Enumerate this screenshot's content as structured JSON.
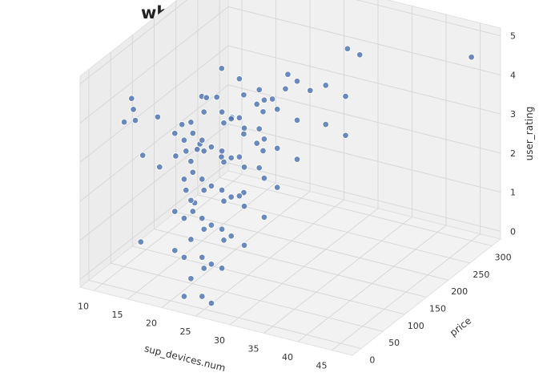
{
  "chart_data": {
    "type": "scatter",
    "projection": "3d",
    "title": "what cause the best rating?",
    "xlabel": "sup_devices.num",
    "ylabel": "price",
    "zlabel": "user_rating",
    "xlim": [
      8,
      48
    ],
    "ylim": [
      -20,
      320
    ],
    "zlim": [
      -0.2,
      5.2
    ],
    "xticks": [
      10,
      15,
      20,
      25,
      30,
      35,
      40,
      45
    ],
    "yticks": [
      0,
      50,
      100,
      150,
      200,
      250,
      300
    ],
    "zticks": [
      0,
      1,
      2,
      3,
      4,
      5
    ],
    "grid": true,
    "point_color": "#4c72b0",
    "points": [
      [
        10,
        50,
        3.5
      ],
      [
        11,
        60,
        3.5
      ],
      [
        12,
        40,
        4
      ],
      [
        13,
        80,
        3.5
      ],
      [
        14,
        30,
        3
      ],
      [
        12,
        100,
        2
      ],
      [
        14,
        120,
        3
      ],
      [
        15,
        90,
        2.5
      ],
      [
        13,
        20,
        4.5
      ],
      [
        15,
        150,
        3.5
      ],
      [
        14,
        200,
        3
      ],
      [
        16,
        180,
        4
      ],
      [
        13,
        250,
        2
      ],
      [
        15,
        10,
        1
      ],
      [
        16,
        130,
        2.5
      ],
      [
        22,
        0,
        4
      ],
      [
        22,
        0,
        3
      ],
      [
        22,
        0,
        2
      ],
      [
        22,
        0,
        1
      ],
      [
        22,
        0,
        0
      ],
      [
        23,
        30,
        4.5
      ],
      [
        23,
        30,
        3.5
      ],
      [
        23,
        30,
        2.5
      ],
      [
        23,
        30,
        1.5
      ],
      [
        23,
        30,
        0.5
      ],
      [
        24,
        60,
        4
      ],
      [
        24,
        60,
        3
      ],
      [
        24,
        60,
        2
      ],
      [
        24,
        60,
        1
      ],
      [
        21,
        20,
        3.5
      ],
      [
        21,
        20,
        2.5
      ],
      [
        20,
        10,
        4
      ],
      [
        20,
        10,
        2
      ],
      [
        20,
        10,
        1
      ],
      [
        25,
        90,
        4.5
      ],
      [
        25,
        90,
        3.5
      ],
      [
        25,
        90,
        2
      ],
      [
        25,
        120,
        3
      ],
      [
        25,
        120,
        4
      ],
      [
        24,
        150,
        3.5
      ],
      [
        24,
        150,
        2.5
      ],
      [
        26,
        170,
        4
      ],
      [
        23,
        0,
        4.5
      ],
      [
        23,
        0,
        3.5
      ],
      [
        23,
        0,
        2.5
      ],
      [
        23,
        0,
        1.5
      ],
      [
        23,
        0,
        0.5
      ],
      [
        22,
        20,
        4
      ],
      [
        22,
        20,
        3
      ],
      [
        22,
        20,
        2
      ],
      [
        24,
        10,
        4
      ],
      [
        24,
        10,
        3
      ],
      [
        24,
        10,
        2
      ],
      [
        24,
        10,
        1
      ],
      [
        24,
        10,
        0
      ],
      [
        25,
        40,
        4.5
      ],
      [
        25,
        40,
        3.5
      ],
      [
        25,
        40,
        2.5
      ],
      [
        25,
        40,
        1.5
      ],
      [
        25,
        40,
        0.5
      ],
      [
        25,
        80,
        5
      ],
      [
        25,
        80,
        4
      ],
      [
        25,
        80,
        3
      ],
      [
        25,
        80,
        2
      ],
      [
        26,
        110,
        4.5
      ],
      [
        26,
        110,
        3.5
      ],
      [
        26,
        110,
        2.5
      ],
      [
        26,
        140,
        4
      ],
      [
        27,
        160,
        4.5
      ],
      [
        23,
        70,
        3
      ],
      [
        24,
        20,
        5
      ],
      [
        22,
        30,
        3.5
      ],
      [
        21,
        40,
        2
      ],
      [
        26,
        0,
        4
      ],
      [
        26,
        0,
        3
      ],
      [
        26,
        0,
        2
      ],
      [
        26,
        0,
        1
      ],
      [
        26,
        0,
        0
      ],
      [
        27,
        30,
        4.5
      ],
      [
        27,
        30,
        3.5
      ],
      [
        27,
        30,
        2.5
      ],
      [
        27,
        30,
        1.5
      ],
      [
        27,
        60,
        4
      ],
      [
        27,
        60,
        3
      ],
      [
        27,
        60,
        2
      ],
      [
        27,
        60,
        1
      ],
      [
        28,
        90,
        4.5
      ],
      [
        28,
        90,
        3.5
      ],
      [
        28,
        90,
        2.5
      ],
      [
        28,
        90,
        1.5
      ],
      [
        28,
        120,
        4
      ],
      [
        28,
        120,
        3
      ],
      [
        28,
        120,
        2
      ],
      [
        29,
        150,
        4.5
      ],
      [
        29,
        150,
        3.5
      ],
      [
        29,
        150,
        2.5
      ],
      [
        30,
        200,
        4
      ],
      [
        30,
        200,
        3
      ],
      [
        31,
        230,
        3.5
      ],
      [
        31,
        230,
        2.5
      ],
      [
        29,
        180,
        4
      ],
      [
        30,
        250,
        4.5
      ],
      [
        35,
        200,
        5
      ],
      [
        45,
        300,
        4.5
      ]
    ]
  }
}
